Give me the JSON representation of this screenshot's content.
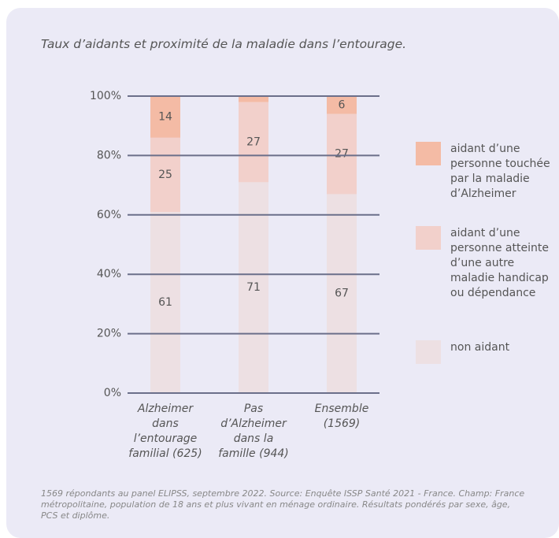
{
  "chart_data": {
    "type": "stacked_bar",
    "title": "Taux d’aidants et proximité de la maladie dans l’entourage.",
    "categories": [
      "Alzheimer dans l’entourage familial (625)",
      "Pas d’Alzheimer dans la famille (944)",
      "Ensemble (1569)"
    ],
    "series": [
      {
        "name": "non aidant",
        "color": "#ede0e3",
        "values": [
          61,
          71,
          67
        ]
      },
      {
        "name": "aidant d’une personne atteinte d’une autre maladie handicap ou dépendance",
        "color": "#f2d0cb",
        "values": [
          25,
          27,
          27
        ]
      },
      {
        "name": "aidant d’une personne touchée par la maladie d’Alzheimer",
        "color": "#f4bba5",
        "values": [
          14,
          2,
          6
        ],
        "value_labels": [
          "14",
          null,
          "6"
        ]
      }
    ],
    "ylim": [
      0,
      100
    ],
    "yticks": [
      {
        "value": 0,
        "label": "0%"
      },
      {
        "value": 20,
        "label": "20%"
      },
      {
        "value": 40,
        "label": "40%"
      },
      {
        "value": 60,
        "label": "60%"
      },
      {
        "value": 80,
        "label": "80%"
      },
      {
        "value": 100,
        "label": "100%"
      }
    ],
    "grid": true,
    "legend": "right",
    "note": "1569 répondants au panel ELIPSS, septembre 2022. Source: Enquête ISSP Santé 2021 - France. Champ: France métropolitaine, population de 18 ans et plus vivant en ménage ordinaire. Résultats pondérés par sexe, âge, PCS et diplôme."
  }
}
